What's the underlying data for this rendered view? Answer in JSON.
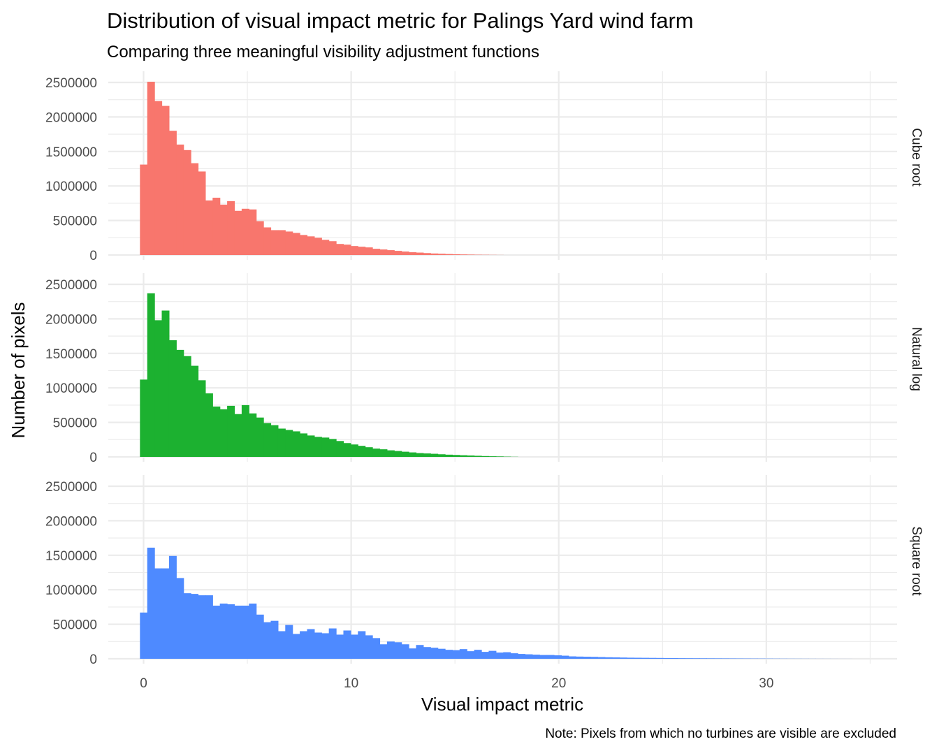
{
  "chart_data": {
    "type": "bar",
    "title": "Distribution of visual impact metric for Palings Yard wind farm",
    "subtitle": "Comparing three meaningful visibility adjustment functions",
    "xlabel": "Visual impact metric",
    "ylabel": "Number of pixels",
    "caption": "Note: Pixels from which no turbines are visible are excluded",
    "xlim": [
      -1.7,
      36.3
    ],
    "ylim": [
      0,
      2500000
    ],
    "x_ticks": [
      0,
      10,
      20,
      30
    ],
    "y_ticks": [
      0,
      500000,
      1000000,
      1500000,
      2000000,
      2500000
    ],
    "grid": true,
    "bin_width": 0.35,
    "bin_start": -0.175,
    "facets": [
      {
        "name": "Cube root",
        "color": "#F8766D",
        "values": [
          1310000,
          2510000,
          2230000,
          2160000,
          1800000,
          1600000,
          1520000,
          1330000,
          1210000,
          790000,
          830000,
          730000,
          780000,
          640000,
          670000,
          660000,
          490000,
          400000,
          360000,
          360000,
          340000,
          320000,
          290000,
          270000,
          250000,
          220000,
          200000,
          160000,
          150000,
          130000,
          120000,
          110000,
          90000,
          80000,
          70000,
          60000,
          50000,
          40000,
          35000,
          28000,
          22000,
          18000,
          14000,
          10000,
          8000,
          6000,
          4000,
          3000,
          2000,
          1000
        ]
      },
      {
        "name": "Natural log",
        "color": "#1CB130",
        "values": [
          1120000,
          2370000,
          1980000,
          2120000,
          1690000,
          1550000,
          1460000,
          1320000,
          1110000,
          920000,
          730000,
          690000,
          740000,
          620000,
          750000,
          630000,
          570000,
          490000,
          460000,
          410000,
          390000,
          370000,
          340000,
          310000,
          290000,
          280000,
          260000,
          230000,
          200000,
          180000,
          160000,
          140000,
          120000,
          110000,
          95000,
          85000,
          75000,
          65000,
          55000,
          50000,
          45000,
          38000,
          32000,
          28000,
          24000,
          20000,
          16000,
          12000,
          9000,
          7000,
          4000,
          2000
        ]
      },
      {
        "name": "Square root",
        "color": "#4E8AFF",
        "values": [
          670000,
          1610000,
          1310000,
          1310000,
          1490000,
          1170000,
          950000,
          940000,
          920000,
          920000,
          770000,
          800000,
          790000,
          770000,
          770000,
          800000,
          640000,
          530000,
          550000,
          400000,
          490000,
          360000,
          400000,
          430000,
          380000,
          370000,
          440000,
          350000,
          410000,
          350000,
          400000,
          340000,
          300000,
          210000,
          250000,
          240000,
          210000,
          150000,
          200000,
          170000,
          160000,
          145000,
          130000,
          125000,
          140000,
          110000,
          130000,
          100000,
          115000,
          90000,
          95000,
          80000,
          70000,
          65000,
          60000,
          55000,
          55000,
          50000,
          45000,
          35000,
          32000,
          30000,
          28000,
          25000,
          22000,
          20000,
          18000,
          16000,
          15000,
          14000,
          13000,
          12000,
          11000,
          10000,
          9000,
          8500,
          8000,
          7500,
          7000,
          6500,
          6000,
          5500,
          5000,
          4500,
          4000,
          3600,
          3200,
          2800,
          2400,
          2000,
          1800,
          1500,
          1200,
          1000,
          800,
          600,
          400,
          300
        ]
      }
    ]
  }
}
